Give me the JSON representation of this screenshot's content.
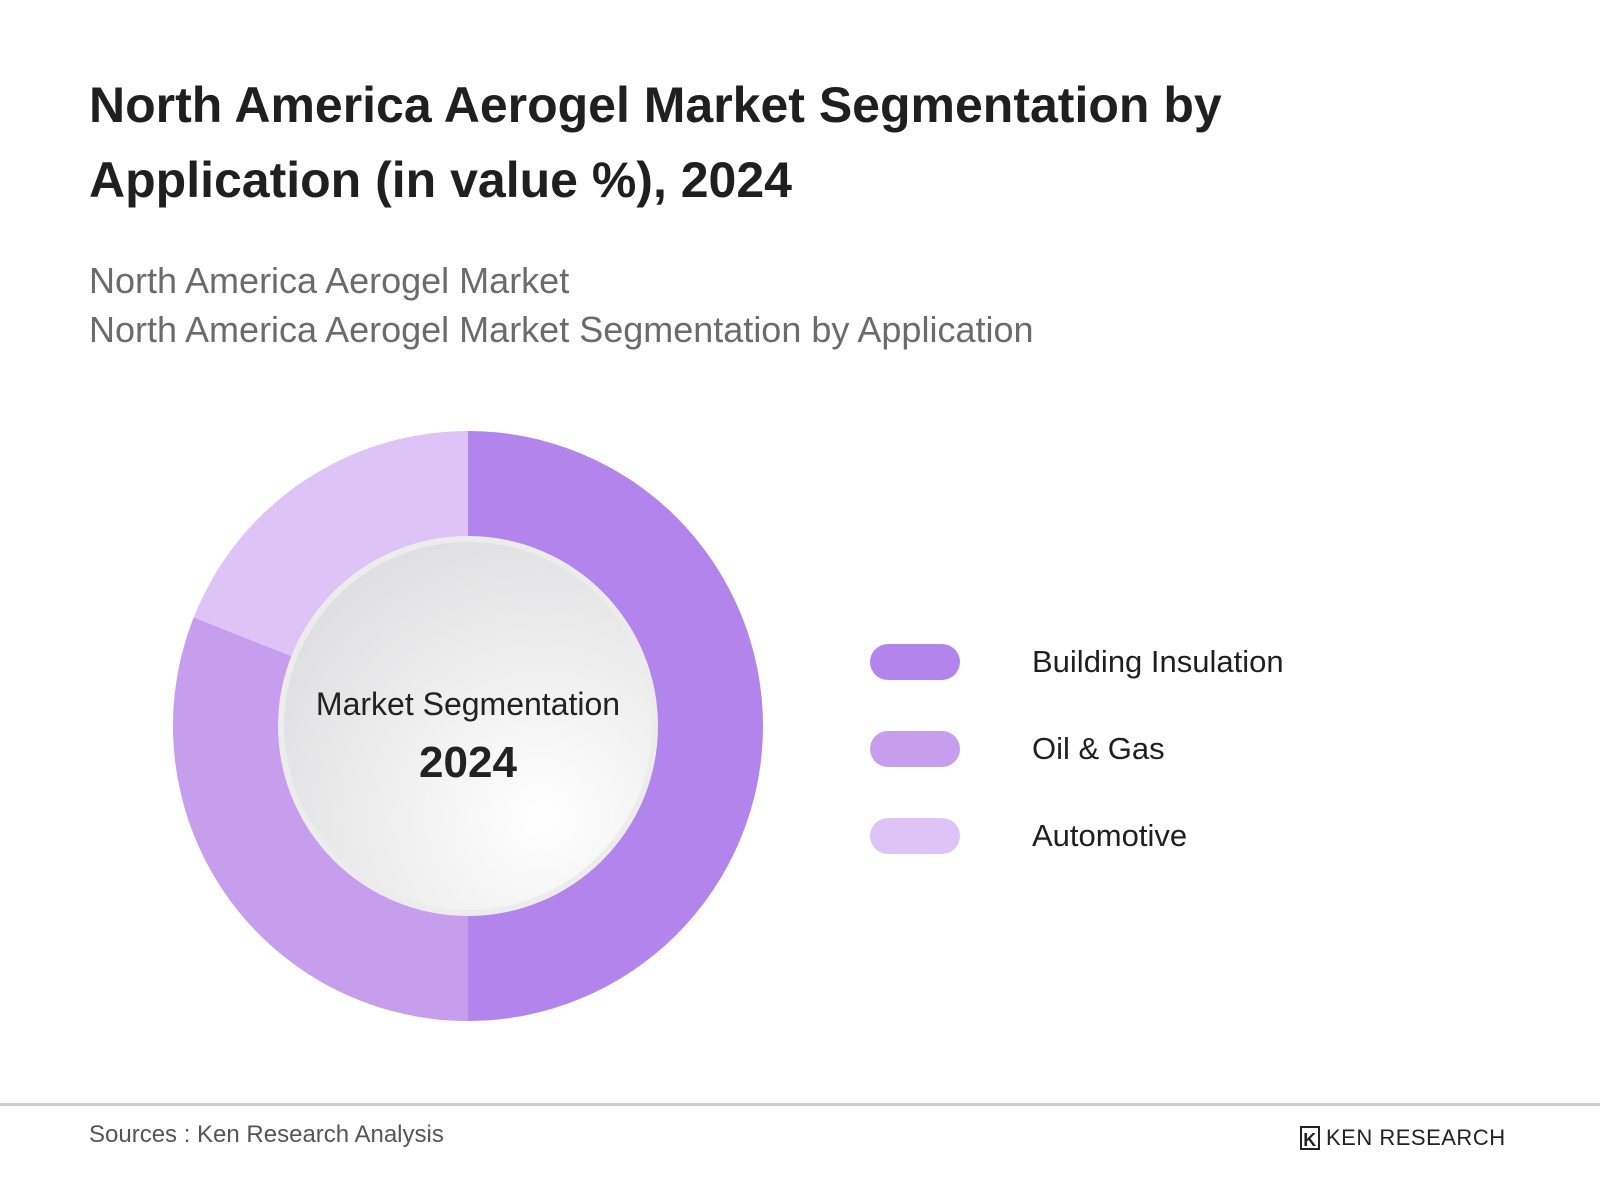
{
  "title": "North America Aerogel Market Segmentation by Application (in value %), 2024",
  "subtitle_lines": [
    "North America Aerogel Market",
    "North America Aerogel Market Segmentation by Application"
  ],
  "chart_data": {
    "type": "pie",
    "variant": "donut",
    "center_title": "Market Segmentation",
    "center_year": "2024",
    "categories": [
      "Building Insulation",
      "Oil & Gas",
      "Automotive"
    ],
    "values": [
      50,
      31,
      19
    ],
    "colors": [
      "#b384eb",
      "#c79ded",
      "#dec4f6"
    ],
    "legend_position": "right"
  },
  "footer": {
    "source": "Sources : Ken Research Analysis",
    "logo_text": "KEN RESEARCH",
    "logo_mark": "K"
  }
}
